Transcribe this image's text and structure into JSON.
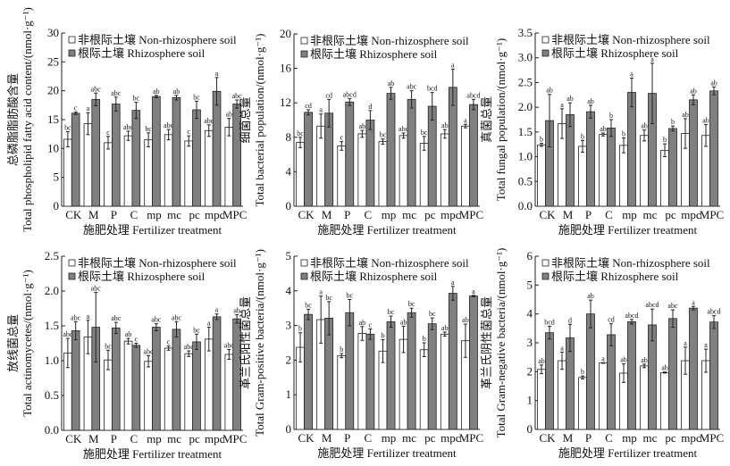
{
  "chart_data": [
    {
      "type": "bar",
      "title": "",
      "ylabel_cn": "总磷脂脂肪酸含量",
      "ylabel_en": "Total phospholipid fatty acid content/(nmol·g⁻¹)",
      "xlabel": "施肥处理 Fertilizer treatment",
      "categories": [
        "CK",
        "M",
        "P",
        "C",
        "mp",
        "mc",
        "pc",
        "mpc",
        "MPC"
      ],
      "ylim": [
        0,
        30
      ],
      "yticks": [
        "0",
        "5",
        "10",
        "15",
        "20",
        "25",
        "30"
      ],
      "grid": false,
      "legend": "top-left",
      "series": [
        {
          "name": "非根际土壤 Non-rhizosphere soil",
          "color": "#ffffff",
          "values": [
            11.6,
            14.3,
            11.0,
            12.2,
            11.5,
            12.4,
            11.3,
            13.1,
            13.7
          ],
          "errors": [
            1.3,
            1.9,
            1.1,
            0.8,
            1.2,
            0.9,
            0.9,
            1.0,
            1.5
          ],
          "letters": [
            "bc",
            "a",
            "c",
            "abc",
            "bc",
            "abc",
            "c",
            "abc",
            "ab"
          ]
        },
        {
          "name": "根际土壤 Rhizosphere soil",
          "color": "#808080",
          "values": [
            16.1,
            18.5,
            17.7,
            16.6,
            19.0,
            18.8,
            16.7,
            19.9,
            17.7
          ],
          "errors": [
            0.2,
            1.1,
            1.2,
            1.4,
            0.2,
            0.4,
            1.5,
            2.4,
            0.7
          ],
          "letters": [
            "c",
            "abc",
            "abc",
            "bc",
            "ab",
            "ab",
            "bc",
            "a",
            "abc"
          ]
        }
      ]
    },
    {
      "type": "bar",
      "title": "",
      "ylabel_cn": "细菌总量",
      "ylabel_en": "Total bacterial population/(nmol·g⁻¹)",
      "xlabel": "施肥处理 Fertilizer treatment",
      "categories": [
        "CK",
        "M",
        "P",
        "C",
        "mp",
        "mc",
        "pc",
        "mpc",
        "MPC"
      ],
      "ylim": [
        0,
        20
      ],
      "yticks": [
        "0",
        "4",
        "8",
        "12",
        "16",
        "20"
      ],
      "grid": false,
      "legend": "top-left",
      "series": [
        {
          "name": "非根际土壤 Non-rhizosphere soil",
          "color": "#ffffff",
          "values": [
            7.4,
            9.3,
            7.0,
            8.4,
            7.5,
            8.2,
            7.3,
            8.4,
            9.3
          ],
          "errors": [
            0.6,
            1.4,
            0.5,
            0.4,
            0.3,
            0.3,
            0.8,
            0.5,
            0.2
          ],
          "letters": [
            "bc",
            "a",
            "c",
            "ab",
            "bc",
            "abc",
            "bc",
            "ab",
            "a"
          ]
        },
        {
          "name": "根际土壤 Rhizosphere soil",
          "color": "#808080",
          "values": [
            10.9,
            10.8,
            12.1,
            10.0,
            13.1,
            12.4,
            11.6,
            13.8,
            11.8
          ],
          "errors": [
            0.3,
            1.6,
            0.4,
            1.1,
            0.7,
            1.0,
            1.6,
            2.1,
            0.6
          ],
          "letters": [
            "cd",
            "cd",
            "abcd",
            "d",
            "ab",
            "abc",
            "bcd",
            "a",
            "abcd"
          ]
        }
      ]
    },
    {
      "type": "bar",
      "title": "",
      "ylabel_cn": "真菌总量",
      "ylabel_en": "Total fungal population/(nmol·g⁻¹)",
      "xlabel": "施肥处理 Fertilizer treatment",
      "categories": [
        "CK",
        "M",
        "P",
        "C",
        "mp",
        "mc",
        "pc",
        "mpc",
        "MPC"
      ],
      "ylim": [
        0,
        3.5
      ],
      "yticks": [
        "0.0",
        "0.5",
        "1.0",
        "1.5",
        "2.0",
        "2.5",
        "3.0",
        "3.5"
      ],
      "grid": false,
      "legend": "top-left",
      "series": [
        {
          "name": "非根际土壤 Non-rhizosphere soil",
          "color": "#ffffff",
          "values": [
            1.24,
            1.67,
            1.21,
            1.45,
            1.23,
            1.43,
            1.13,
            1.47,
            1.43
          ],
          "errors": [
            0.03,
            0.3,
            0.12,
            0.03,
            0.15,
            0.11,
            0.13,
            0.3,
            0.22
          ],
          "letters": [
            "b",
            "a",
            "b",
            "ab",
            "b",
            "ab",
            "b",
            "ab",
            "ab"
          ]
        },
        {
          "name": "根际土壤 Rhizosphere soil",
          "color": "#808080",
          "values": [
            1.73,
            1.85,
            1.91,
            1.58,
            2.3,
            2.28,
            1.57,
            2.15,
            2.33
          ],
          "errors": [
            0.53,
            0.24,
            0.13,
            0.17,
            0.29,
            0.61,
            0.05,
            0.1,
            0.08
          ],
          "letters": [
            "ab",
            "ab",
            "ab",
            "b",
            "a",
            "a",
            "b",
            "ab",
            "ab"
          ]
        }
      ]
    },
    {
      "type": "bar",
      "title": "",
      "ylabel_cn": "放线菌总量",
      "ylabel_en": "Total actinomycetes/(nmol·g⁻¹)",
      "xlabel": "施肥处理 Fertilizer treatment",
      "categories": [
        "CK",
        "M",
        "P",
        "C",
        "mp",
        "mc",
        "pc",
        "mpc",
        "MPC"
      ],
      "ylim": [
        0,
        2.5
      ],
      "yticks": [
        "0.0",
        "0.5",
        "1.0",
        "1.5",
        "2.0",
        "2.5"
      ],
      "grid": false,
      "legend": "top-left",
      "series": [
        {
          "name": "非根际土壤 Non-rhizosphere soil",
          "color": "#ffffff",
          "values": [
            1.11,
            1.34,
            1.01,
            1.28,
            0.99,
            1.18,
            1.1,
            1.31,
            1.09
          ],
          "errors": [
            0.21,
            0.24,
            0.14,
            0.04,
            0.08,
            0.03,
            0.04,
            0.17,
            0.07
          ],
          "letters": [
            "abc",
            "a",
            "bc",
            "ab",
            "abc",
            "c",
            "abc",
            "a",
            "abc"
          ]
        },
        {
          "name": "根际土壤 Rhizosphere soil",
          "color": "#808080",
          "values": [
            1.43,
            1.48,
            1.47,
            1.22,
            1.48,
            1.45,
            1.27,
            1.63,
            1.6
          ],
          "errors": [
            0.13,
            0.5,
            0.08,
            0.03,
            0.05,
            0.11,
            0.11,
            0.04,
            0.06
          ],
          "letters": [
            "abc",
            "abc",
            "abc",
            "c",
            "abc",
            "abc",
            "bc",
            "a",
            "ab"
          ]
        }
      ]
    },
    {
      "type": "bar",
      "title": "",
      "ylabel_cn": "革兰氏阳性菌总量",
      "ylabel_en": "Total Gram-positive bacteria/(nmol·g⁻¹)",
      "xlabel": "施肥处理 Fertilizer treatment",
      "categories": [
        "CK",
        "M",
        "P",
        "C",
        "mp",
        "mc",
        "pc",
        "mpc",
        "MPC"
      ],
      "ylim": [
        0,
        5
      ],
      "yticks": [
        "0",
        "1",
        "2",
        "3",
        "4",
        "5"
      ],
      "grid": false,
      "legend": "top-left",
      "series": [
        {
          "name": "非根际土壤 Non-rhizosphere soil",
          "color": "#ffffff",
          "values": [
            2.37,
            3.17,
            2.13,
            2.77,
            2.26,
            2.6,
            2.3,
            2.75,
            2.56
          ],
          "errors": [
            0.42,
            0.68,
            0.06,
            0.2,
            0.33,
            0.38,
            0.2,
            0.06,
            0.48
          ],
          "letters": [
            "b",
            "a",
            "b",
            "ab",
            "b",
            "ab",
            "b",
            "ab",
            "ab"
          ]
        },
        {
          "name": "根际土壤 Rhizosphere soil",
          "color": "#808080",
          "values": [
            3.32,
            3.21,
            3.37,
            2.75,
            3.11,
            3.37,
            3.05,
            3.93,
            3.85
          ],
          "errors": [
            0.15,
            0.48,
            0.38,
            0.15,
            0.16,
            0.13,
            0.17,
            0.2,
            0.02
          ],
          "letters": [
            "bc",
            "bc",
            "bc",
            "c",
            "bc",
            "bc",
            "bc",
            "a",
            "a"
          ]
        }
      ]
    },
    {
      "type": "bar",
      "title": "",
      "ylabel_cn": "革兰氏阴性菌总量",
      "ylabel_en": "Total Gram-negative bacteria/(nmol·g⁻¹)",
      "xlabel": "施肥处理 Fertilizer treatment",
      "categories": [
        "CK",
        "M",
        "P",
        "C",
        "mp",
        "mc",
        "pc",
        "mpc",
        "MPC"
      ],
      "ylim": [
        0,
        6
      ],
      "yticks": [
        "0",
        "1",
        "2",
        "3",
        "4",
        "5",
        "6"
      ],
      "grid": false,
      "legend": "top-left",
      "series": [
        {
          "name": "非根际土壤 Non-rhizosphere soil",
          "color": "#ffffff",
          "values": [
            2.08,
            2.38,
            1.8,
            2.3,
            1.95,
            2.2,
            1.97,
            2.38,
            2.38
          ],
          "errors": [
            0.15,
            0.3,
            0.05,
            0.01,
            0.32,
            0.06,
            0.02,
            0.47,
            0.4
          ],
          "letters": [
            "ab",
            "a",
            "b",
            "a",
            "ab",
            "ab",
            "ab",
            "a",
            "a"
          ]
        },
        {
          "name": "根际土壤 Rhizosphere soil",
          "color": "#808080",
          "values": [
            3.35,
            3.17,
            4.0,
            3.28,
            3.73,
            3.62,
            3.84,
            4.2,
            3.72
          ],
          "errors": [
            0.22,
            0.47,
            0.48,
            0.38,
            0.08,
            0.55,
            0.3,
            0.06,
            0.22
          ],
          "letters": [
            "bcd",
            "d",
            "ab",
            "cd",
            "abcd",
            "abcd",
            "abc",
            "a",
            "abcd"
          ]
        }
      ]
    }
  ]
}
